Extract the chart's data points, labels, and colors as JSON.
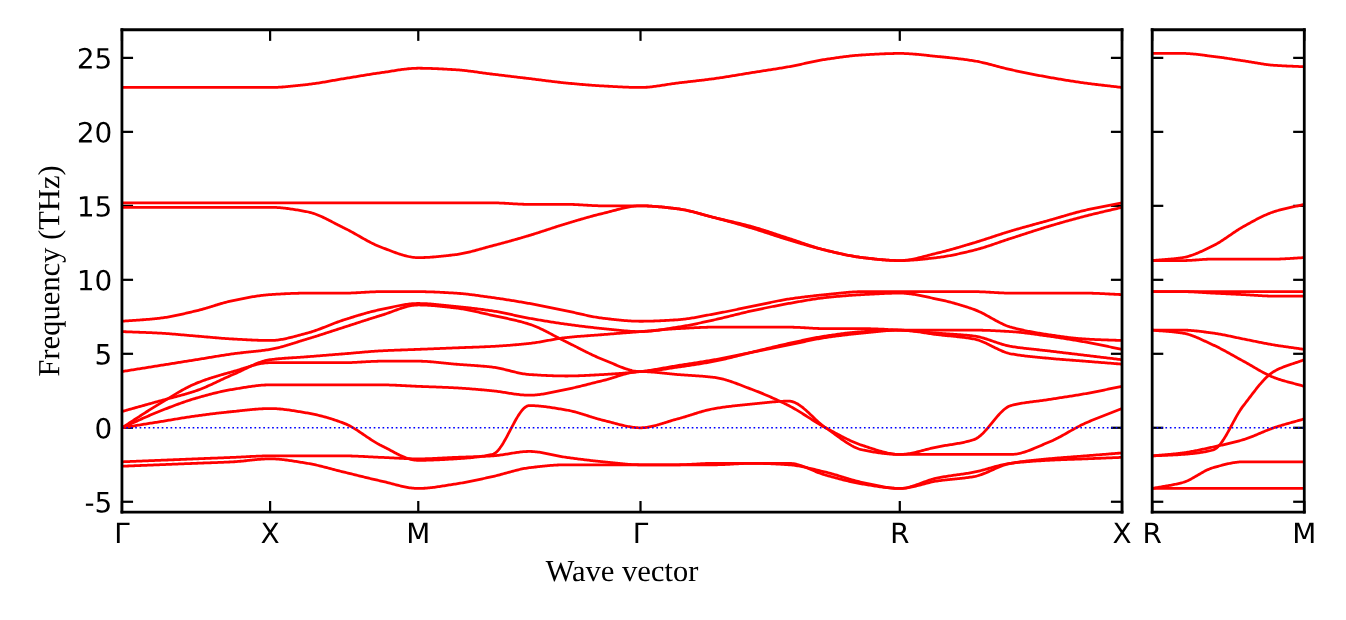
{
  "chart_data": [
    {
      "type": "line",
      "xlabel": "Wave vector",
      "ylabel": "Frequency (THz)",
      "categories": [
        "Γ",
        null,
        null,
        null,
        "X",
        null,
        null,
        null,
        "M",
        null,
        null,
        null,
        null,
        null,
        "Γ",
        null,
        null,
        null,
        null,
        null,
        null,
        "R",
        null,
        null,
        null,
        null,
        null,
        "X"
      ],
      "ylim": [
        -5.7,
        26.9
      ],
      "yticks": [
        -5,
        0,
        5,
        10,
        15,
        20,
        25
      ],
      "ref_lines": [
        {
          "axis": "y",
          "value": 0,
          "color": "#0000ff",
          "line_style": "dotted"
        }
      ],
      "series": [
        {
          "color": "#ff0000",
          "values": [
            23.0,
            23.0,
            23.0,
            23.0,
            23.0,
            23.2,
            23.6,
            24.0,
            24.3,
            24.2,
            23.9,
            23.6,
            23.3,
            23.1,
            23.0,
            23.3,
            23.6,
            24.0,
            24.4,
            24.9,
            25.2,
            25.3,
            25.1,
            24.8,
            24.2,
            23.7,
            23.3,
            23.0
          ]
        },
        {
          "color": "#ff0000",
          "values": [
            15.2,
            15.2,
            15.2,
            15.2,
            15.2,
            15.2,
            15.2,
            15.2,
            15.2,
            15.2,
            15.2,
            15.1,
            15.1,
            15.0,
            15.0,
            14.8,
            14.2,
            13.6,
            12.8,
            12.0,
            11.5,
            11.3,
            11.8,
            12.5,
            13.3,
            14.0,
            14.7,
            15.2
          ]
        },
        {
          "color": "#ff0000",
          "values": [
            14.9,
            14.9,
            14.9,
            14.9,
            14.9,
            14.6,
            13.5,
            12.2,
            11.5,
            11.7,
            12.3,
            13.0,
            13.8,
            14.5,
            15.0,
            14.8,
            14.2,
            13.5,
            12.7,
            12.0,
            11.5,
            11.3,
            11.5,
            12.0,
            12.8,
            13.6,
            14.3,
            14.9
          ]
        },
        {
          "color": "#ff0000",
          "values": [
            7.2,
            7.4,
            7.9,
            8.6,
            9.0,
            9.1,
            9.1,
            9.2,
            9.2,
            9.1,
            8.8,
            8.4,
            7.9,
            7.4,
            7.2,
            7.3,
            7.7,
            8.2,
            8.7,
            9.0,
            9.2,
            9.2,
            9.2,
            9.2,
            9.1,
            9.1,
            9.1,
            9.0
          ]
        },
        {
          "color": "#ff0000",
          "values": [
            6.5,
            6.4,
            6.2,
            6.0,
            5.9,
            6.4,
            7.3,
            8.0,
            8.4,
            8.2,
            7.9,
            7.4,
            7.0,
            6.7,
            6.5,
            6.8,
            7.3,
            7.9,
            8.4,
            8.8,
            9.0,
            9.1,
            8.7,
            8.0,
            6.8,
            6.3,
            6.0,
            5.9
          ]
        },
        {
          "color": "#ff0000",
          "values": [
            3.8,
            4.2,
            4.6,
            5.0,
            5.3,
            6.0,
            6.8,
            7.6,
            8.3,
            8.1,
            7.6,
            7.0,
            5.8,
            4.6,
            3.8,
            4.1,
            4.5,
            5.1,
            5.7,
            6.2,
            6.5,
            6.6,
            6.6,
            6.6,
            6.5,
            6.2,
            5.8,
            5.3
          ]
        },
        {
          "color": "#ff0000",
          "values": [
            1.1,
            1.8,
            2.5,
            3.6,
            4.6,
            4.8,
            5.0,
            5.2,
            5.3,
            5.4,
            5.5,
            5.7,
            6.1,
            6.3,
            6.5,
            6.7,
            6.8,
            6.8,
            6.8,
            6.7,
            6.7,
            6.6,
            6.4,
            6.2,
            5.5,
            5.2,
            4.9,
            4.6
          ]
        },
        {
          "color": "#ff0000",
          "values": [
            0,
            1.6,
            3.0,
            3.8,
            4.4,
            4.4,
            4.4,
            4.5,
            4.5,
            4.3,
            4.1,
            3.6,
            3.5,
            3.6,
            3.8,
            4.2,
            4.6,
            5.1,
            5.6,
            6.1,
            6.4,
            6.6,
            6.3,
            6.0,
            5.0,
            4.7,
            4.5,
            4.3
          ]
        },
        {
          "color": "#ff0000",
          "values": [
            0,
            1.1,
            2.0,
            2.6,
            2.9,
            2.9,
            2.9,
            2.9,
            2.8,
            2.7,
            2.5,
            2.2,
            2.6,
            3.2,
            3.8,
            3.6,
            3.4,
            2.6,
            1.5,
            0.0,
            -1.2,
            -1.8,
            -1.3,
            -0.8,
            1.5,
            1.9,
            2.3,
            2.8
          ]
        },
        {
          "color": "#ff0000",
          "values": [
            0,
            0.4,
            0.8,
            1.1,
            1.3,
            1.0,
            0.3,
            -1.2,
            -2.2,
            -2.1,
            -1.8,
            1.5,
            1.2,
            0.5,
            0,
            0.6,
            1.3,
            1.6,
            1.8,
            0.0,
            -1.5,
            -1.8,
            -1.8,
            -1.8,
            -1.8,
            -1.0,
            0.3,
            1.3
          ]
        },
        {
          "color": "#ff0000",
          "values": [
            -2.3,
            -2.2,
            -2.1,
            -2.0,
            -1.9,
            -1.9,
            -1.9,
            -2.0,
            -2.1,
            -2.0,
            -1.9,
            -1.6,
            -2.0,
            -2.3,
            -2.5,
            -2.5,
            -2.4,
            -2.4,
            -2.5,
            -3.0,
            -3.7,
            -4.1,
            -3.6,
            -3.3,
            -2.4,
            -2.1,
            -1.9,
            -1.7
          ]
        },
        {
          "color": "#ff0000",
          "values": [
            -2.6,
            -2.5,
            -2.4,
            -2.3,
            -2.1,
            -2.4,
            -3.0,
            -3.6,
            -4.1,
            -3.8,
            -3.3,
            -2.7,
            -2.5,
            -2.5,
            -2.5,
            -2.5,
            -2.5,
            -2.4,
            -2.4,
            -3.2,
            -3.8,
            -4.1,
            -3.4,
            -3.0,
            -2.4,
            -2.2,
            -2.1,
            -2.0
          ]
        }
      ]
    },
    {
      "type": "line",
      "tick_labels": "x",
      "categories": [
        "R",
        null,
        null,
        null,
        null,
        "M"
      ],
      "ylim": [
        -5.7,
        26.9
      ],
      "yticks": [
        -5,
        0,
        5,
        10,
        15,
        20,
        25
      ],
      "ref_lines": [
        {
          "axis": "y",
          "value": 0,
          "color": "#0000ff",
          "line_style": "dotted"
        }
      ],
      "series": [
        {
          "color": "#ff0000",
          "values": [
            25.3,
            25.3,
            25.1,
            24.8,
            24.5,
            24.4
          ]
        },
        {
          "color": "#ff0000",
          "values": [
            11.3,
            11.5,
            12.3,
            13.6,
            14.6,
            15.1
          ]
        },
        {
          "color": "#ff0000",
          "values": [
            11.3,
            11.3,
            11.4,
            11.4,
            11.4,
            11.5
          ]
        },
        {
          "color": "#ff0000",
          "values": [
            9.2,
            9.2,
            9.2,
            9.2,
            9.2,
            9.2
          ]
        },
        {
          "color": "#ff0000",
          "values": [
            9.2,
            9.2,
            9.1,
            9.0,
            8.9,
            8.9
          ]
        },
        {
          "color": "#ff0000",
          "values": [
            6.6,
            6.6,
            6.4,
            6.0,
            5.6,
            5.3
          ]
        },
        {
          "color": "#ff0000",
          "values": [
            6.6,
            6.4,
            5.6,
            4.5,
            3.4,
            2.8
          ]
        },
        {
          "color": "#ff0000",
          "values": [
            -1.9,
            -1.8,
            -1.5,
            1.5,
            3.8,
            4.6
          ]
        },
        {
          "color": "#ff0000",
          "values": [
            -1.9,
            -1.7,
            -1.3,
            -0.8,
            0.0,
            0.6
          ]
        },
        {
          "color": "#ff0000",
          "values": [
            -4.1,
            -3.7,
            -2.7,
            -2.3,
            -2.3,
            -2.3
          ]
        },
        {
          "color": "#ff0000",
          "values": [
            -4.1,
            -4.1,
            -4.1,
            -4.1,
            -4.1,
            -4.1
          ]
        }
      ]
    }
  ]
}
